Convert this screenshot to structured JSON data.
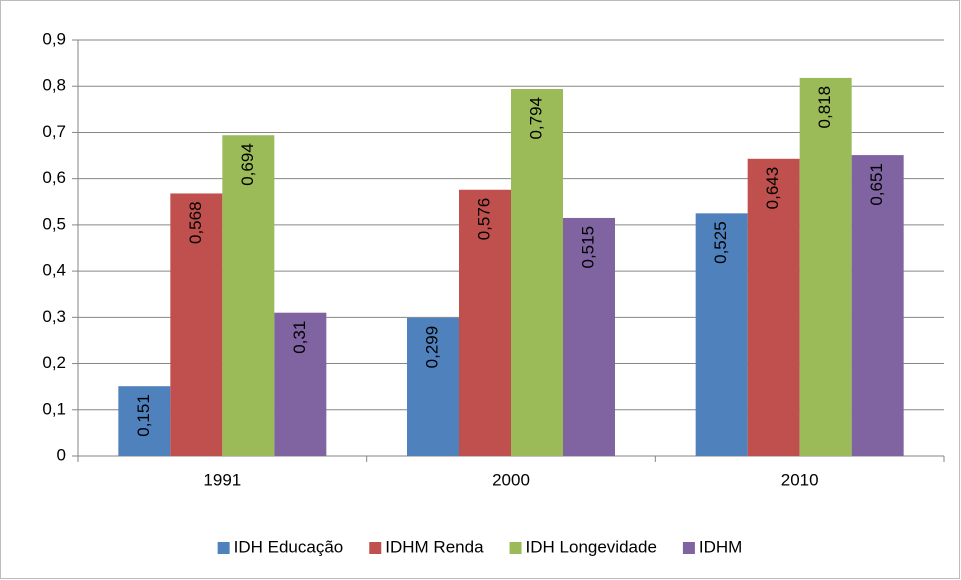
{
  "chart_data": {
    "type": "bar",
    "categories": [
      "1991",
      "2000",
      "2010"
    ],
    "series": [
      {
        "name": "IDH Educação",
        "color": "#4f81bd",
        "values": [
          0.151,
          0.299,
          0.525
        ],
        "value_labels": [
          "0,151",
          "0,299",
          "0,525"
        ]
      },
      {
        "name": "IDHM Renda",
        "color": "#c0504d",
        "values": [
          0.568,
          0.576,
          0.643
        ],
        "value_labels": [
          "0,568",
          "0,576",
          "0,643"
        ]
      },
      {
        "name": "IDH Longevidade",
        "color": "#9bbb59",
        "values": [
          0.694,
          0.794,
          0.818
        ],
        "value_labels": [
          "0,694",
          "0,794",
          "0,818"
        ]
      },
      {
        "name": "IDHM",
        "color": "#8064a2",
        "values": [
          0.31,
          0.515,
          0.651
        ],
        "value_labels": [
          "0,31",
          "0,515",
          "0,651"
        ]
      }
    ],
    "ylim": [
      0,
      0.9
    ],
    "yticks": [
      0,
      {
        "value": 0.1,
        "label": "0,1"
      },
      {
        "value": 0.2,
        "label": "0,2"
      },
      {
        "value": 0.3,
        "label": "0,3"
      },
      {
        "value": 0.4,
        "label": "0,4"
      },
      {
        "value": 0.5,
        "label": "0,5"
      },
      {
        "value": 0.6,
        "label": "0,6"
      },
      {
        "value": 0.7,
        "label": "0,7"
      },
      {
        "value": 0.8,
        "label": "0,8"
      },
      {
        "value": 0.9,
        "label": "0,9"
      }
    ],
    "grid": true,
    "legend": "bottom"
  }
}
